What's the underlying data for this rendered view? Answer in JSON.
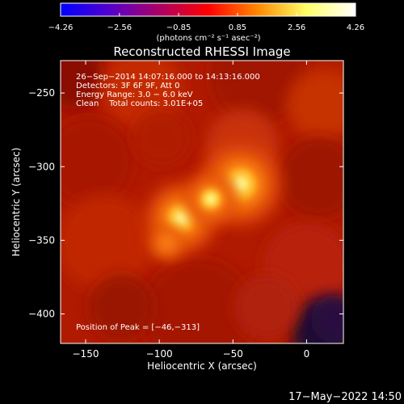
{
  "chart_data": {
    "type": "heatmap",
    "title": "Reconstructed RHESSI Image",
    "xlabel": "Heliocentric X (arcsec)",
    "ylabel": "Heliocentric Y (arcsec)",
    "xlim": [
      -167,
      25
    ],
    "ylim": [
      -420,
      -228
    ],
    "x_ticks": [
      -150,
      -100,
      -50,
      0
    ],
    "x_tick_labels": [
      "−150",
      "−100",
      "−50",
      "0"
    ],
    "y_ticks": [
      -250,
      -300,
      -350,
      -400
    ],
    "y_tick_labels": [
      "−250",
      "−300",
      "−350",
      "−400"
    ],
    "colorbar": {
      "range": [
        -4.26,
        4.26
      ],
      "ticks": [
        -4.26,
        -2.56,
        -0.85,
        0.85,
        2.56,
        4.26
      ],
      "tick_labels": [
        "−4.26",
        "−2.56",
        "−0.85",
        "0.85",
        "2.56",
        "4.26"
      ],
      "unit_label": "(photons cm⁻² s⁻¹ asec⁻²)",
      "colormap": [
        "#0000ff",
        "#5500cc",
        "#aa0066",
        "#ff0000",
        "#ff8800",
        "#ffff66",
        "#ffffff"
      ]
    },
    "annotations": [
      "26−Sep−2014 14:07:16.000 to 14:13:16.000",
      "Detectors: 3F 6F 9F, Att 0",
      "Energy Range: 3.0 − 6.0 keV",
      "Clean    Total counts: 3.01E+05"
    ],
    "peak_label": "Position of Peak = [−46,−313]",
    "peak": [
      -46,
      -313
    ],
    "sources": [
      {
        "x": -45,
        "y": -312,
        "intensity": 1.0
      },
      {
        "x": -85,
        "y": -335,
        "intensity": 0.85
      },
      {
        "x": -65,
        "y": -322,
        "intensity": 0.6
      },
      {
        "x": -95,
        "y": -352,
        "intensity": 0.35
      }
    ],
    "grid": false
  },
  "footer": {
    "timestamp": "17−May−2022 14:50"
  }
}
